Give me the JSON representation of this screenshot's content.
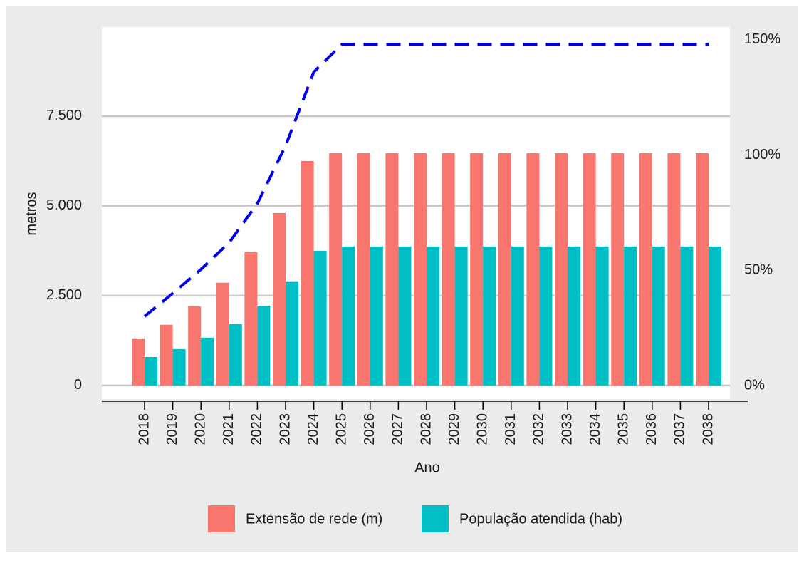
{
  "chart_data": {
    "type": "bar",
    "x_label": "Ano",
    "y_label": "metros",
    "categories": [
      "2018",
      "2019",
      "2020",
      "2021",
      "2022",
      "2023",
      "2024",
      "2025",
      "2026",
      "2027",
      "2028",
      "2029",
      "2030",
      "2031",
      "2032",
      "2033",
      "2034",
      "2035",
      "2036",
      "2037",
      "2038"
    ],
    "series": [
      {
        "name": "Extensão de rede (m)",
        "color": "#f8766d",
        "type": "bar",
        "values": [
          1310,
          1690,
          2200,
          2860,
          3710,
          4800,
          6250,
          6470,
          6470,
          6470,
          6470,
          6470,
          6470,
          6470,
          6470,
          6470,
          6470,
          6470,
          6470,
          6470,
          6470
        ]
      },
      {
        "name": "População atendida (hab)",
        "color": "#00bfc4",
        "type": "bar",
        "values": [
          790,
          1010,
          1330,
          1710,
          2220,
          2900,
          3750,
          3870,
          3870,
          3870,
          3870,
          3870,
          3870,
          3870,
          3870,
          3870,
          3870,
          3870,
          3870,
          3870,
          3870
        ]
      },
      {
        "color": "#0000ee",
        "type": "line",
        "axis": "y2",
        "linestyle": "dashed",
        "values": [
          30,
          40,
          50.4,
          62,
          79,
          104,
          136,
          148,
          148,
          148,
          148,
          148,
          148,
          148,
          148,
          148,
          148,
          148,
          148,
          148,
          148
        ]
      }
    ],
    "ylim": [
      -440,
      9980
    ],
    "yticks": [
      0,
      {
        "value": 2500,
        "label": "2.500"
      },
      {
        "value": 5000,
        "label": "5.000"
      },
      {
        "value": 7500,
        "label": "7.500"
      }
    ],
    "y2lim": [
      -6.8,
      155.5
    ],
    "y2ticks": [
      {
        "value": 0,
        "label": "0%"
      },
      {
        "value": 50,
        "label": "50%"
      },
      {
        "value": 100,
        "label": "100%"
      },
      {
        "value": 150,
        "label": "150%"
      }
    ],
    "grid": true,
    "legend": "bottom"
  }
}
